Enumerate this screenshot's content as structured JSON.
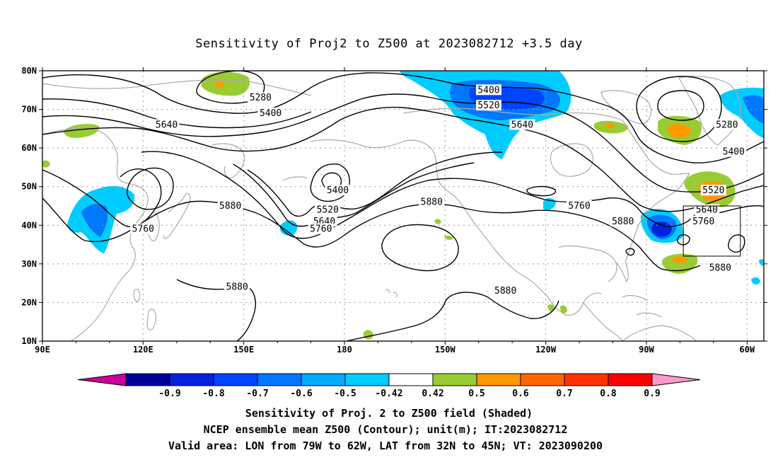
{
  "title": "Sensitivity of Proj2 to Z500 at 2023082712 +3.5 day",
  "map": {
    "lon_ticks": [
      "90E",
      "120E",
      "150E",
      "180",
      "150W",
      "120W",
      "90W",
      "60W"
    ],
    "lat_ticks": [
      "10N",
      "20N",
      "30N",
      "40N",
      "50N",
      "60N",
      "70N",
      "80N"
    ],
    "contour_labels": [
      {
        "text": "5280",
        "lon": 155,
        "lat": 73
      },
      {
        "text": "5400",
        "lon": 158,
        "lat": 69
      },
      {
        "text": "5640",
        "lon": 127,
        "lat": 66
      },
      {
        "text": "5400",
        "lon": 223,
        "lat": 75
      },
      {
        "text": "5520",
        "lon": 223,
        "lat": 71
      },
      {
        "text": "5640",
        "lon": 233,
        "lat": 66
      },
      {
        "text": "5280",
        "lon": 294,
        "lat": 66
      },
      {
        "text": "5400",
        "lon": 296,
        "lat": 59
      },
      {
        "text": "5520",
        "lon": 290,
        "lat": 49
      },
      {
        "text": "5640",
        "lon": 288,
        "lat": 44
      },
      {
        "text": "5760",
        "lon": 287,
        "lat": 41
      },
      {
        "text": "5880",
        "lon": 292,
        "lat": 29
      },
      {
        "text": "5400",
        "lon": 178,
        "lat": 49
      },
      {
        "text": "5520",
        "lon": 175,
        "lat": 44
      },
      {
        "text": "5640",
        "lon": 174,
        "lat": 41
      },
      {
        "text": "5760",
        "lon": 173,
        "lat": 39
      },
      {
        "text": "5880",
        "lon": 146,
        "lat": 45
      },
      {
        "text": "5760",
        "lon": 120,
        "lat": 39
      },
      {
        "text": "5880",
        "lon": 206,
        "lat": 46
      },
      {
        "text": "5760",
        "lon": 250,
        "lat": 45
      },
      {
        "text": "5880",
        "lon": 263,
        "lat": 41
      },
      {
        "text": "5880",
        "lon": 148,
        "lat": 24
      },
      {
        "text": "5880",
        "lon": 228,
        "lat": 23
      }
    ],
    "valid_box": {
      "lon_min": 281,
      "lon_max": 298,
      "lat_min": 32,
      "lat_max": 45
    }
  },
  "colorbar": {
    "labels": [
      "-0.9",
      "-0.8",
      "-0.7",
      "-0.6",
      "-0.5",
      "-0.42",
      "0.42",
      "0.5",
      "0.6",
      "0.7",
      "0.8",
      "0.9"
    ],
    "colors": [
      "#000099",
      "#0022dd",
      "#0044ff",
      "#0077ff",
      "#00aaff",
      "#00ccff",
      "#ffffff",
      "#99cc33",
      "#ff9900",
      "#ff6600",
      "#ff3300",
      "#ff0000"
    ],
    "end_low": "#cc0099",
    "end_high": "#ff99cc"
  },
  "caption": {
    "line1": "Sensitivity of Proj. 2 to Z500 field (Shaded)",
    "line2": "NCEP ensemble mean Z500 (Contour); unit(m); IT:2023082712",
    "line3": "Valid area: LON from 79W to 62W, LAT from 32N to 45N; VT: 2023090200"
  },
  "colors": {
    "contour": "#000000",
    "coastline": "#aaaaaa",
    "grid": "#999999",
    "neg_light": "#00ccff",
    "neg_mid": "#0077ff",
    "neg_dark": "#0022dd",
    "pos_green": "#99cc33",
    "pos_orange": "#ff9900"
  }
}
